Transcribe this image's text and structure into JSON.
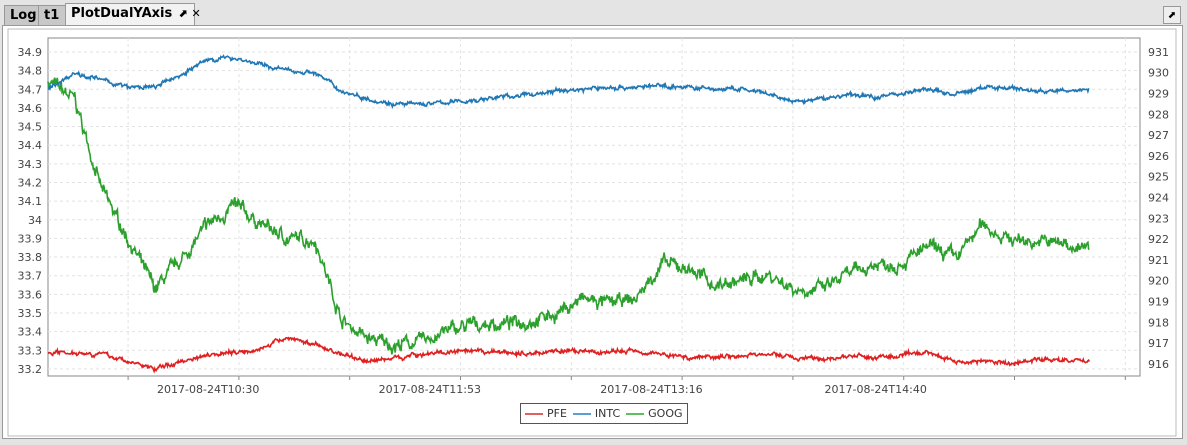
{
  "tabs": [
    {
      "label": "Log"
    },
    {
      "label": "t1"
    },
    {
      "label": "PlotDualYAxis",
      "active": true
    }
  ],
  "icons": {
    "undock": "undock-icon",
    "close": "close-icon"
  },
  "chart_data": {
    "type": "line",
    "title": "",
    "x": [
      "09:30",
      "09:40",
      "09:50",
      "10:00",
      "10:10",
      "10:20",
      "10:30",
      "10:40",
      "10:50",
      "11:00",
      "11:10",
      "11:20",
      "11:30",
      "11:40",
      "11:50",
      "12:00",
      "12:10",
      "12:20",
      "12:30",
      "12:40",
      "12:50",
      "13:00",
      "13:10",
      "13:20",
      "13:30",
      "13:40",
      "13:50",
      "14:00",
      "14:10",
      "14:20",
      "14:30",
      "14:40",
      "14:50",
      "15:00",
      "15:10",
      "15:20",
      "15:30",
      "15:40",
      "15:50",
      "16:00"
    ],
    "x_tick_labels": [
      "2017-08-24T10:30",
      "2017-08-24T11:53",
      "2017-08-24T13:16",
      "2017-08-24T14:40"
    ],
    "x_tick_minutes": [
      630,
      713,
      796,
      880
    ],
    "xlim_minutes": [
      570,
      979
    ],
    "left_axis": {
      "ylim": [
        33.162,
        34.975
      ],
      "ticks": [
        "33.2",
        "33.3",
        "33.4",
        "33.5",
        "33.6",
        "33.7",
        "33.8",
        "33.9",
        "34",
        "34.1",
        "34.2",
        "34.3",
        "34.4",
        "34.5",
        "34.6",
        "34.7",
        "34.8",
        "34.9"
      ]
    },
    "right_axis": {
      "ylim": [
        915.42,
        931.67
      ],
      "ticks": [
        "916",
        "917",
        "918",
        "919",
        "920",
        "921",
        "922",
        "923",
        "924",
        "925",
        "926",
        "927",
        "928",
        "929",
        "930",
        "931"
      ]
    },
    "series": [
      {
        "name": "PFE",
        "axis": "left",
        "color": "#e02020",
        "values": [
          33.29,
          33.29,
          33.28,
          33.24,
          33.2,
          33.24,
          33.28,
          33.29,
          33.31,
          33.37,
          33.33,
          33.28,
          33.24,
          33.26,
          33.28,
          33.29,
          33.29,
          33.29,
          33.28,
          33.3,
          33.29,
          33.29,
          33.3,
          33.28,
          33.26,
          33.27,
          33.27,
          33.28,
          33.26,
          33.25,
          33.27,
          33.26,
          33.27,
          33.29,
          33.24,
          33.24,
          33.23,
          33.25,
          33.25,
          33.24
        ]
      },
      {
        "name": "INTC",
        "axis": "left",
        "color": "#1f77b4",
        "values": [
          34.7,
          34.79,
          34.75,
          34.71,
          34.71,
          34.78,
          34.86,
          34.87,
          34.83,
          34.8,
          34.79,
          34.69,
          34.65,
          34.62,
          34.62,
          34.63,
          34.64,
          34.66,
          34.67,
          34.69,
          34.7,
          34.71,
          34.71,
          34.72,
          34.71,
          34.7,
          34.7,
          34.67,
          34.63,
          34.65,
          34.67,
          34.66,
          34.68,
          34.7,
          34.67,
          34.71,
          34.71,
          34.69,
          34.69,
          34.7
        ]
      },
      {
        "name": "GOOG",
        "axis": "right",
        "color": "#2ca02c",
        "values": [
          929.6,
          928.7,
          924.4,
          922.0,
          919.6,
          921.0,
          922.7,
          923.6,
          922.7,
          922.0,
          922.0,
          918.1,
          917.2,
          916.9,
          917.1,
          917.6,
          917.9,
          917.9,
          918.1,
          918.4,
          919.1,
          918.9,
          919.1,
          920.8,
          920.6,
          919.8,
          920.0,
          920.3,
          919.6,
          919.6,
          920.3,
          920.8,
          920.9,
          921.6,
          921.1,
          922.7,
          922.0,
          921.9,
          921.8,
          921.5
        ]
      }
    ],
    "legend": "bottom-center",
    "grid": true
  }
}
